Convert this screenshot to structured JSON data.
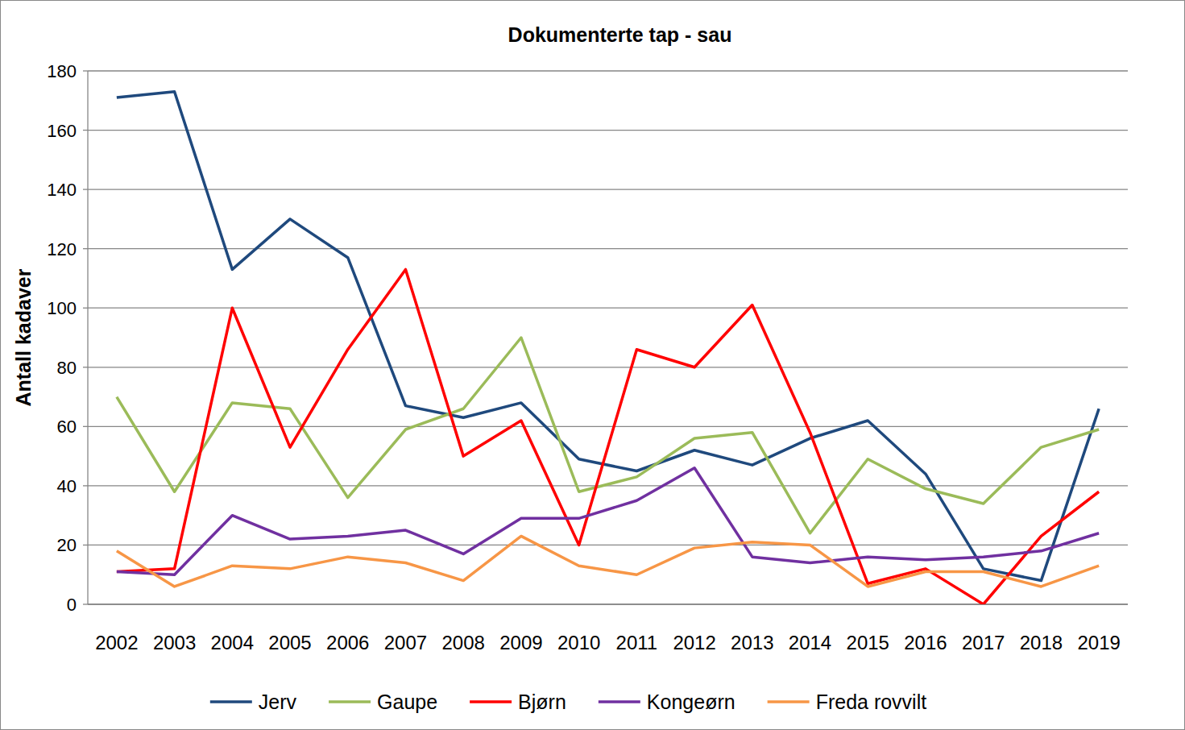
{
  "chart_data": {
    "type": "line",
    "title": "Dokumenterte tap - sau",
    "y_label": "Antall kadaver",
    "categories": [
      "2002",
      "2003",
      "2004",
      "2005",
      "2006",
      "2007",
      "2008",
      "2009",
      "2010",
      "2011",
      "2012",
      "2013",
      "2014",
      "2015",
      "2016",
      "2017",
      "2018",
      "2019"
    ],
    "series": [
      {
        "name": "Jerv",
        "color": "#1f497d",
        "values": [
          171,
          173,
          113,
          130,
          117,
          67,
          63,
          68,
          49,
          45,
          52,
          47,
          56,
          62,
          44,
          12,
          8,
          66
        ]
      },
      {
        "name": "Gaupe",
        "color": "#9bbb59",
        "values": [
          70,
          38,
          68,
          66,
          36,
          59,
          66,
          90,
          38,
          43,
          56,
          58,
          24,
          49,
          39,
          34,
          53,
          59
        ]
      },
      {
        "name": "Bjørn",
        "color": "#ff0000",
        "values": [
          11,
          12,
          100,
          53,
          86,
          113,
          50,
          62,
          20,
          86,
          80,
          101,
          58,
          7,
          12,
          0,
          23,
          38
        ]
      },
      {
        "name": "Kongeørn",
        "color": "#7030a0",
        "values": [
          11,
          10,
          30,
          22,
          23,
          25,
          17,
          29,
          29,
          35,
          46,
          16,
          14,
          16,
          15,
          16,
          18,
          24
        ]
      },
      {
        "name": "Freda rovvilt",
        "color": "#f79646",
        "values": [
          18,
          6,
          13,
          12,
          16,
          14,
          8,
          23,
          13,
          10,
          19,
          21,
          20,
          6,
          11,
          11,
          6,
          13
        ]
      }
    ],
    "ylim": [
      0,
      180
    ],
    "yticks": [
      0,
      20,
      40,
      60,
      80,
      100,
      120,
      140,
      160,
      180
    ],
    "grid": true,
    "legend": "bottom",
    "marker": "none"
  }
}
